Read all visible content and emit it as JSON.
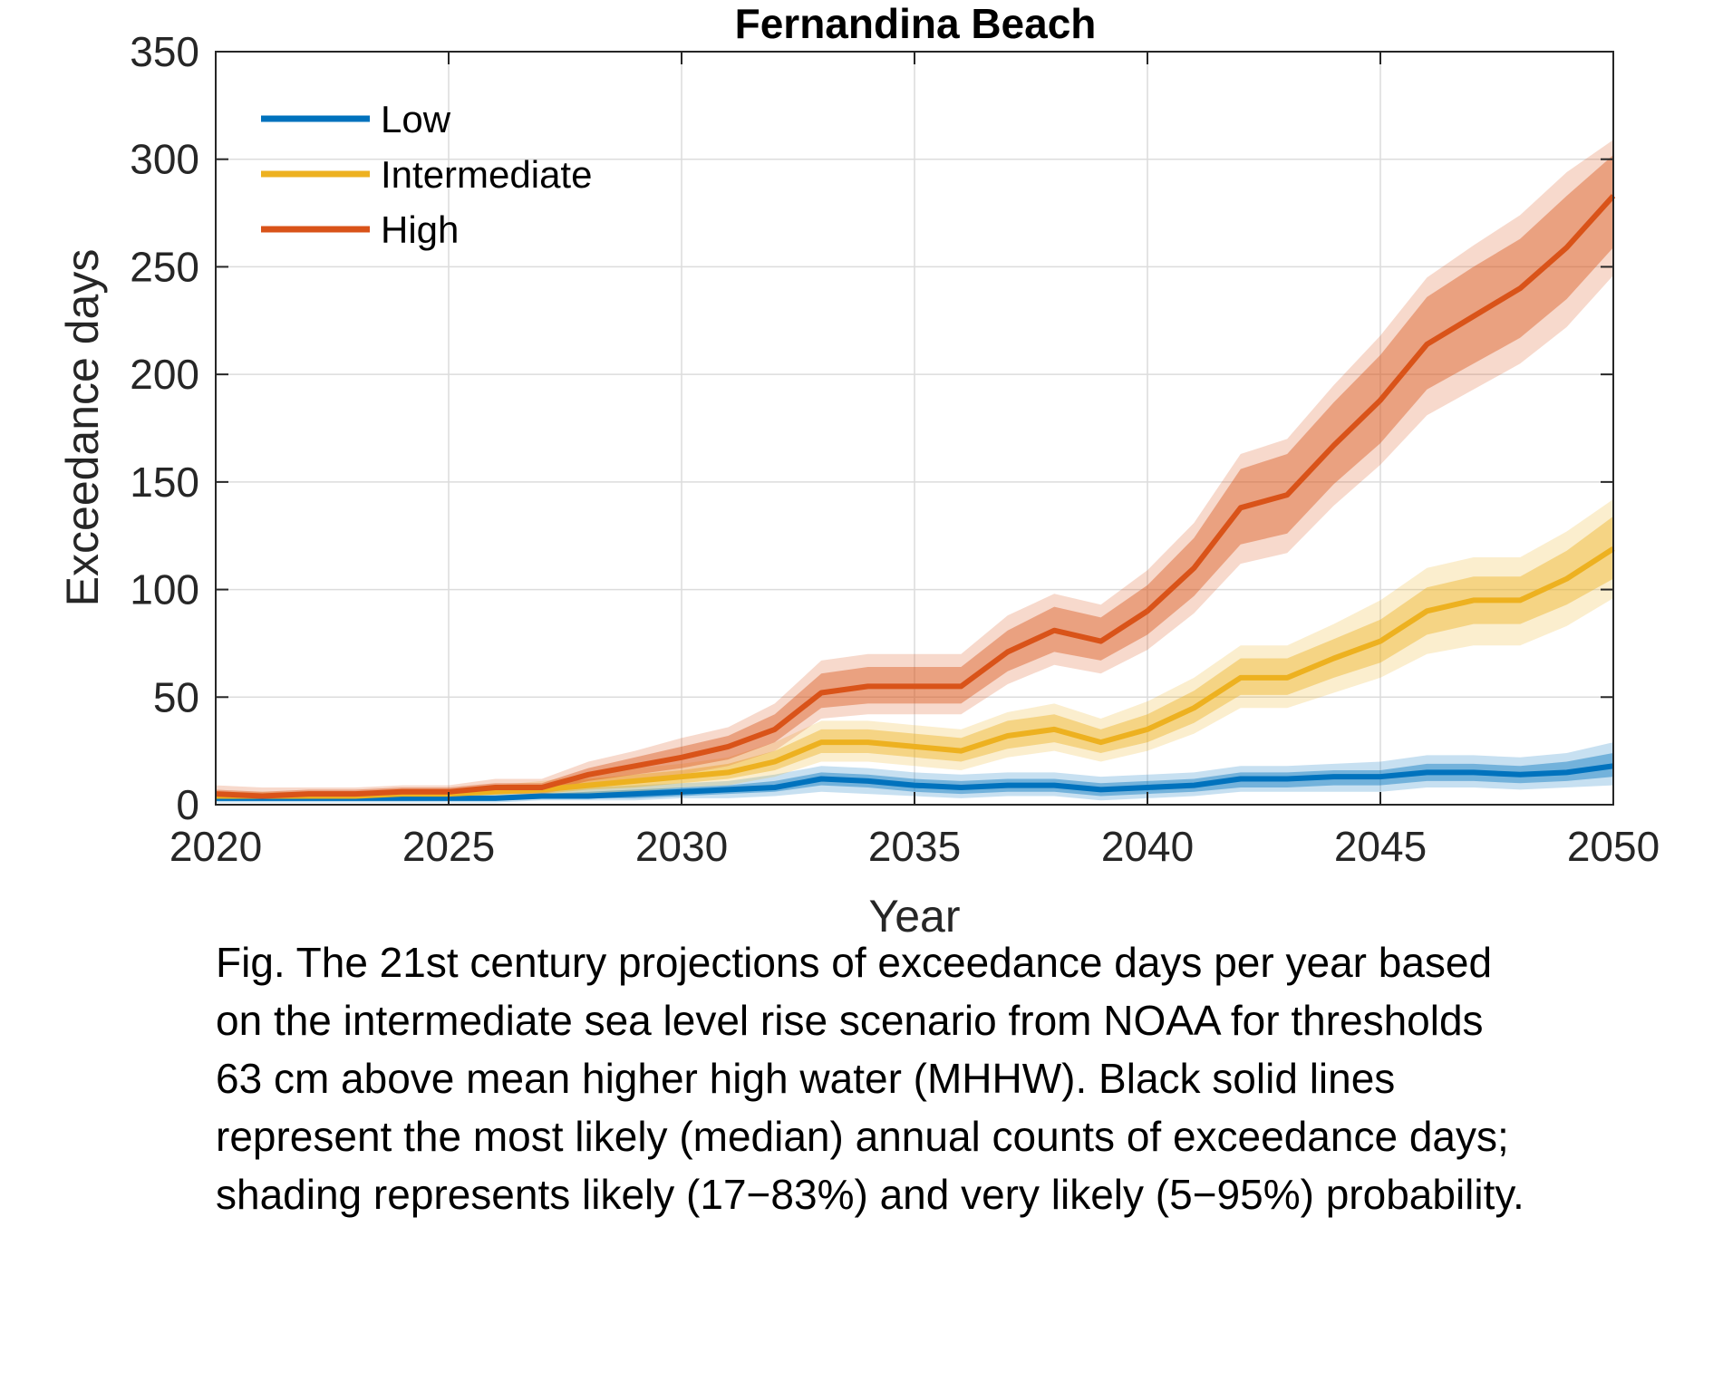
{
  "chart_data": {
    "type": "line",
    "title": "Fernandina Beach",
    "xlabel": "Year",
    "ylabel": "Exceedance days",
    "xlim": [
      2020,
      2050
    ],
    "ylim": [
      0,
      350
    ],
    "xticks": [
      2020,
      2025,
      2030,
      2035,
      2040,
      2045,
      2050
    ],
    "yticks": [
      0,
      50,
      100,
      150,
      200,
      250,
      300,
      350
    ],
    "grid": true,
    "legend_position": "top-left",
    "x": [
      2020,
      2021,
      2022,
      2023,
      2024,
      2025,
      2026,
      2027,
      2028,
      2029,
      2030,
      2031,
      2032,
      2033,
      2034,
      2035,
      2036,
      2037,
      2038,
      2039,
      2040,
      2041,
      2042,
      2043,
      2044,
      2045,
      2046,
      2047,
      2048,
      2049,
      2050
    ],
    "series": [
      {
        "name": "Low",
        "color": "#0072BD",
        "median": [
          3,
          3,
          3,
          3,
          3,
          3,
          3,
          4,
          4,
          5,
          6,
          7,
          8,
          12,
          11,
          9,
          8,
          9,
          9,
          7,
          8,
          9,
          12,
          12,
          13,
          13,
          15,
          15,
          14,
          15,
          18
        ],
        "likely_low": [
          2,
          2,
          2,
          2,
          2,
          2,
          2,
          3,
          3,
          3,
          4,
          5,
          6,
          9,
          8,
          6,
          5,
          6,
          6,
          4,
          5,
          6,
          8,
          8,
          9,
          9,
          11,
          11,
          10,
          11,
          13
        ],
        "likely_high": [
          4,
          4,
          4,
          4,
          4,
          4,
          4,
          5,
          6,
          7,
          8,
          9,
          11,
          15,
          14,
          12,
          11,
          12,
          12,
          10,
          11,
          12,
          15,
          15,
          16,
          16,
          19,
          19,
          18,
          20,
          24
        ],
        "very_likely_low": [
          1,
          1,
          1,
          1,
          1,
          1,
          1,
          2,
          2,
          2,
          3,
          3,
          4,
          6,
          5,
          4,
          3,
          4,
          4,
          2,
          3,
          4,
          6,
          6,
          6,
          6,
          8,
          8,
          7,
          8,
          9
        ],
        "very_likely_high": [
          5,
          5,
          5,
          5,
          5,
          5,
          6,
          6,
          8,
          9,
          10,
          11,
          14,
          18,
          17,
          15,
          14,
          15,
          15,
          13,
          14,
          15,
          18,
          18,
          19,
          20,
          23,
          23,
          22,
          24,
          29
        ]
      },
      {
        "name": "Intermediate",
        "color": "#EDB120",
        "median": [
          4,
          4,
          4,
          4,
          5,
          5,
          6,
          7,
          9,
          11,
          13,
          15,
          20,
          29,
          29,
          27,
          25,
          32,
          35,
          29,
          35,
          45,
          59,
          59,
          68,
          76,
          90,
          95,
          95,
          105,
          119
        ],
        "likely_low": [
          3,
          3,
          3,
          3,
          4,
          4,
          5,
          5,
          7,
          8,
          10,
          12,
          16,
          24,
          24,
          22,
          20,
          26,
          29,
          24,
          29,
          38,
          51,
          51,
          59,
          66,
          79,
          84,
          84,
          93,
          105
        ],
        "likely_high": [
          5,
          5,
          5,
          5,
          6,
          6,
          7,
          9,
          12,
          14,
          16,
          19,
          25,
          35,
          35,
          33,
          31,
          39,
          42,
          35,
          42,
          53,
          68,
          68,
          77,
          86,
          101,
          106,
          106,
          118,
          134
        ],
        "very_likely_low": [
          2,
          2,
          2,
          2,
          3,
          3,
          4,
          4,
          5,
          6,
          8,
          9,
          13,
          20,
          20,
          18,
          16,
          22,
          25,
          20,
          25,
          33,
          45,
          45,
          52,
          59,
          70,
          74,
          74,
          83,
          96
        ],
        "very_likely_high": [
          6,
          6,
          6,
          6,
          7,
          7,
          9,
          11,
          14,
          17,
          19,
          22,
          29,
          39,
          39,
          37,
          35,
          43,
          47,
          40,
          48,
          59,
          74,
          74,
          84,
          95,
          110,
          115,
          115,
          127,
          142
        ]
      },
      {
        "name": "High",
        "color": "#D95319",
        "median": [
          5,
          4,
          5,
          5,
          6,
          6,
          8,
          8,
          14,
          18,
          22,
          27,
          35,
          52,
          55,
          55,
          55,
          71,
          81,
          76,
          90,
          110,
          138,
          144,
          167,
          188,
          214,
          227,
          240,
          259,
          283
        ],
        "likely_low": [
          4,
          3,
          4,
          4,
          5,
          5,
          6,
          6,
          11,
          14,
          17,
          21,
          29,
          45,
          47,
          47,
          47,
          62,
          71,
          67,
          79,
          97,
          121,
          126,
          149,
          168,
          193,
          205,
          217,
          235,
          259
        ],
        "likely_high": [
          7,
          6,
          7,
          7,
          8,
          8,
          10,
          10,
          17,
          22,
          27,
          32,
          42,
          61,
          64,
          64,
          64,
          81,
          92,
          87,
          102,
          124,
          156,
          163,
          187,
          209,
          236,
          250,
          263,
          283,
          302
        ],
        "very_likely_low": [
          3,
          2,
          3,
          3,
          4,
          4,
          5,
          5,
          9,
          12,
          14,
          18,
          25,
          40,
          42,
          42,
          42,
          56,
          65,
          61,
          72,
          89,
          112,
          117,
          139,
          158,
          181,
          193,
          205,
          222,
          246
        ],
        "very_likely_high": [
          9,
          8,
          8,
          8,
          9,
          9,
          12,
          12,
          20,
          25,
          31,
          36,
          47,
          67,
          70,
          70,
          70,
          88,
          98,
          93,
          109,
          131,
          163,
          170,
          195,
          218,
          245,
          260,
          274,
          294,
          309
        ]
      }
    ]
  },
  "caption": "Fig. The 21st century projections of exceedance days per year based\non the intermediate sea level rise scenario from NOAA for thresholds\n63 cm above mean higher high water (MHHW). Black solid lines\nrepresent the most likely (median) annual counts of exceedance days;\nshading represents likely (17−83%) and very likely (5−95%) probability."
}
